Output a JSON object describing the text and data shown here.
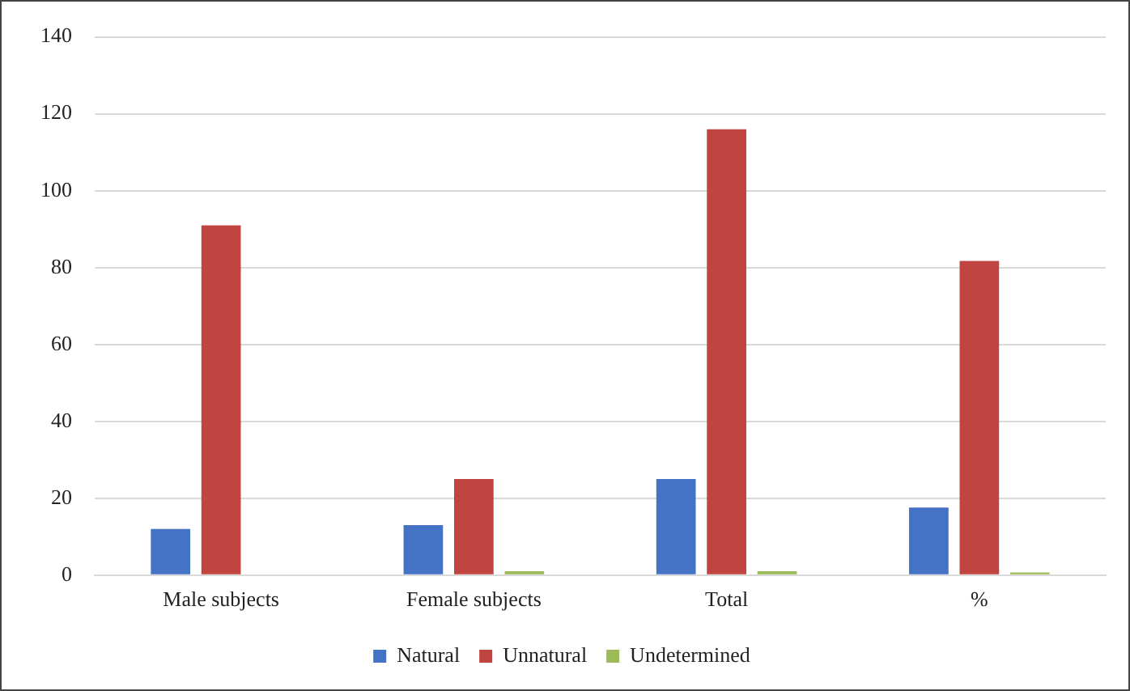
{
  "chart_data": {
    "type": "bar",
    "categories": [
      "Male subjects",
      "Female subjects",
      "Total",
      "%"
    ],
    "series": [
      {
        "name": "Natural",
        "color": "#4472c4",
        "values": [
          12,
          13,
          25,
          17.6
        ]
      },
      {
        "name": "Unnatural",
        "color": "#c0443f",
        "values": [
          91,
          25,
          116,
          81.7
        ]
      },
      {
        "name": "Undetermined",
        "color": "#9bbb59",
        "values": [
          0,
          1,
          1,
          0.7
        ]
      }
    ],
    "ylim": [
      0,
      140
    ],
    "yticks": [
      0,
      20,
      40,
      60,
      80,
      100,
      120,
      140
    ],
    "grid": "y",
    "legend": "bottom"
  }
}
